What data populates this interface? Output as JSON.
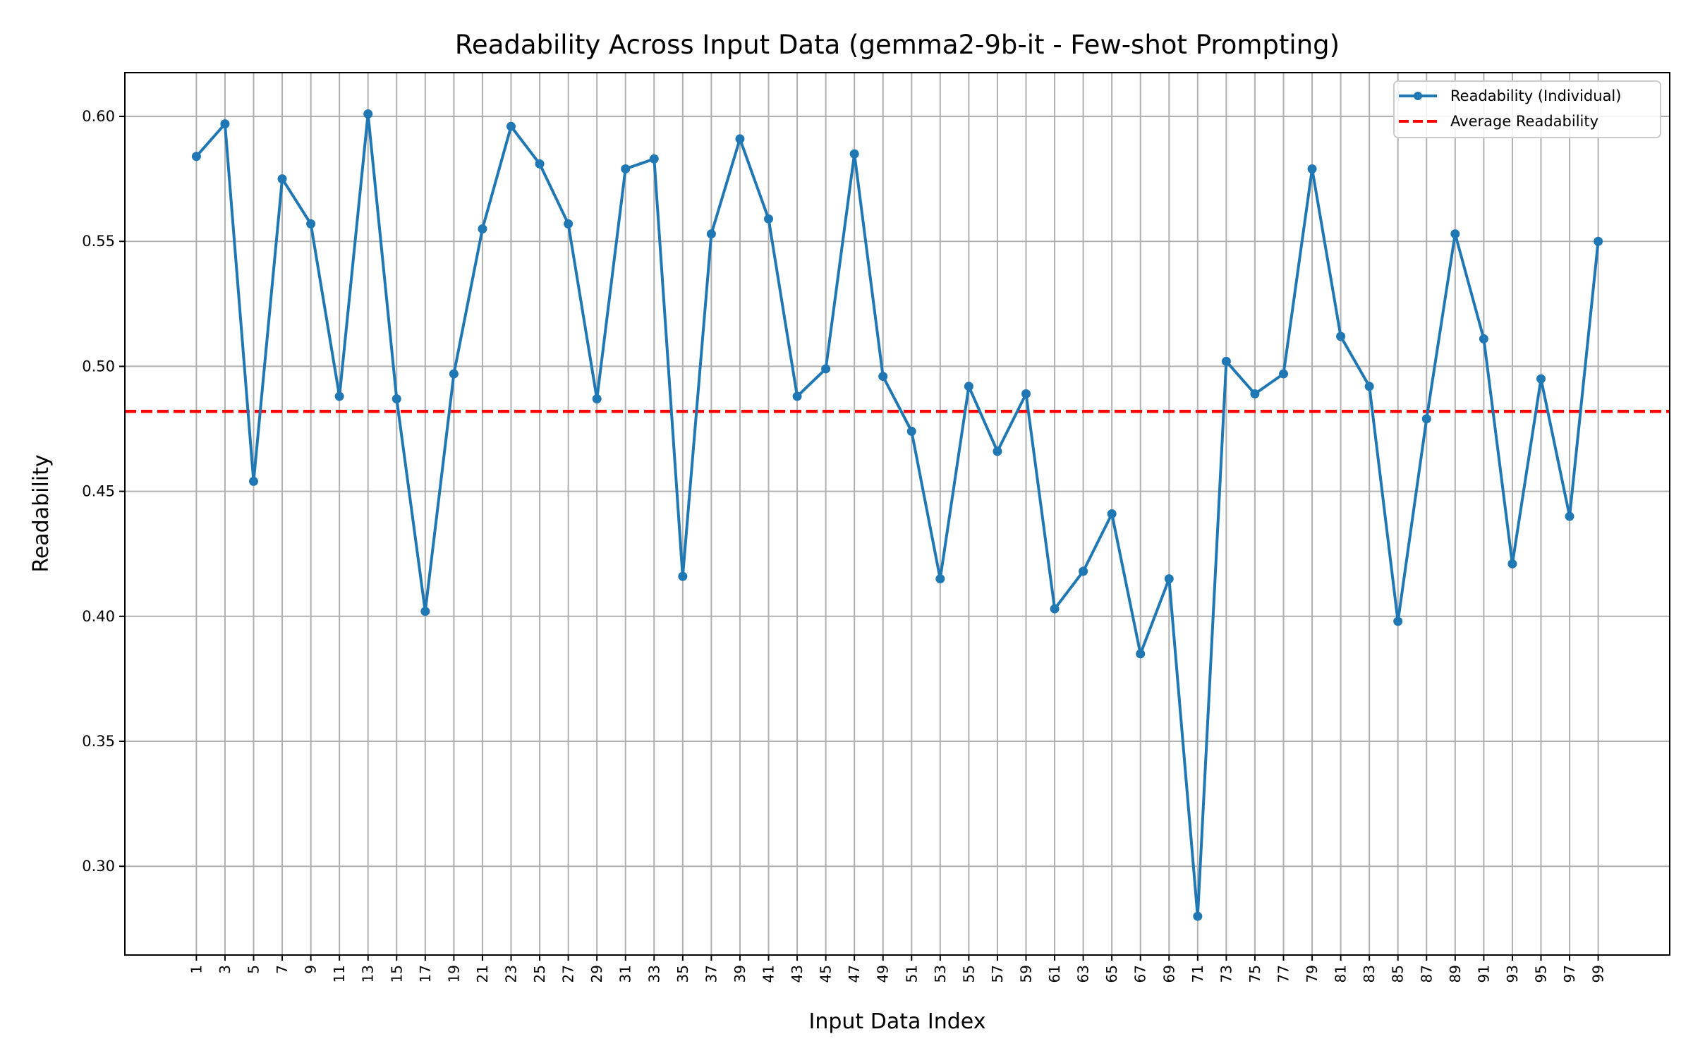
{
  "chart_data": {
    "type": "line",
    "title": "Readability Across Input Data (gemma2-9b-it - Few-shot Prompting)",
    "xlabel": "Input Data Index",
    "ylabel": "Readability",
    "x": [
      1,
      3,
      5,
      7,
      9,
      11,
      13,
      15,
      17,
      19,
      21,
      23,
      25,
      27,
      29,
      31,
      33,
      35,
      37,
      39,
      41,
      43,
      45,
      47,
      49,
      51,
      53,
      55,
      57,
      59,
      61,
      63,
      65,
      67,
      69,
      71,
      73,
      75,
      77,
      79,
      81,
      83,
      85,
      87,
      89,
      91,
      93,
      95,
      97,
      99
    ],
    "xticks": [
      "1",
      "3",
      "5",
      "7",
      "9",
      "11",
      "13",
      "15",
      "17",
      "19",
      "21",
      "23",
      "25",
      "27",
      "29",
      "31",
      "33",
      "35",
      "37",
      "39",
      "41",
      "43",
      "45",
      "47",
      "49",
      "51",
      "53",
      "55",
      "57",
      "59",
      "61",
      "63",
      "65",
      "67",
      "69",
      "71",
      "73",
      "75",
      "77",
      "79",
      "81",
      "83",
      "85",
      "87",
      "89",
      "91",
      "93",
      "95",
      "97",
      "99"
    ],
    "yticks": [
      "0.30",
      "0.35",
      "0.40",
      "0.45",
      "0.50",
      "0.55",
      "0.60"
    ],
    "xlim": [
      -4,
      104
    ],
    "ylim": [
      0.2645,
      0.6175
    ],
    "grid": true,
    "legend_position": "top-right",
    "series": [
      {
        "name": "Readability (Individual)",
        "color": "#1f77b4",
        "style": "solid-with-markers",
        "values": [
          0.584,
          0.597,
          0.454,
          0.575,
          0.557,
          0.488,
          0.601,
          0.487,
          0.402,
          0.497,
          0.555,
          0.596,
          0.581,
          0.557,
          0.487,
          0.579,
          0.583,
          0.416,
          0.553,
          0.591,
          0.559,
          0.488,
          0.499,
          0.585,
          0.496,
          0.474,
          0.415,
          0.492,
          0.466,
          0.489,
          0.403,
          0.418,
          0.441,
          0.385,
          0.415,
          0.28,
          0.502,
          0.489,
          0.497,
          0.579,
          0.512,
          0.492,
          0.398,
          0.479,
          0.553,
          0.511,
          0.421,
          0.495,
          0.44,
          0.55
        ]
      },
      {
        "name": "Average Readability",
        "color": "#ff0000",
        "style": "dashed",
        "value": 0.482
      }
    ]
  }
}
